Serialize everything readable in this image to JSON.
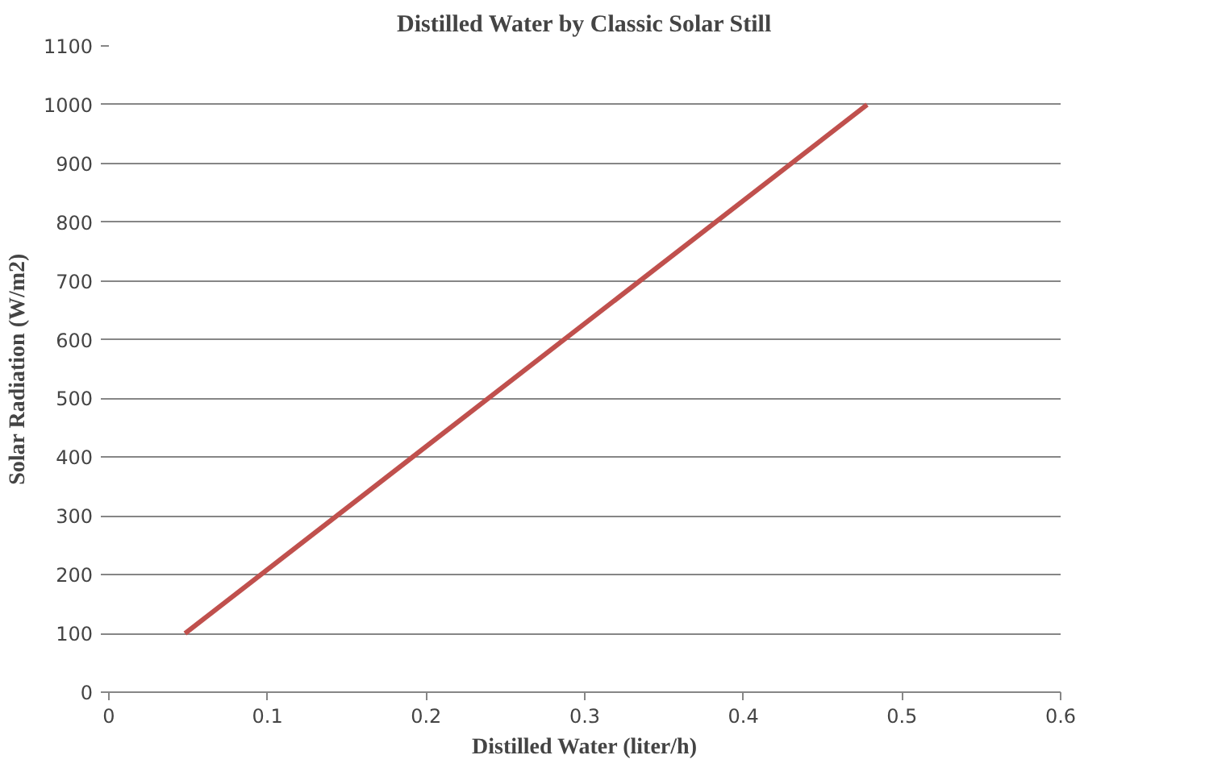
{
  "chart_data": {
    "type": "line",
    "title": "Distilled Water by Classic Solar Still",
    "xlabel": "Distilled Water (liter/h)",
    "ylabel": "Solar Radiation (W/m2)",
    "x": [
      0.048,
      0.478
    ],
    "series": [
      {
        "color": "#c0504d",
        "values": [
          100,
          1000
        ]
      }
    ],
    "xlim": [
      0,
      0.6
    ],
    "xticks": [
      0,
      0.1,
      0.2,
      0.3,
      0.4,
      0.5,
      0.6
    ],
    "ylim": [
      0,
      1100
    ],
    "yticks": [
      0,
      100,
      200,
      300,
      400,
      500,
      600,
      700,
      800,
      900,
      1000,
      1100
    ],
    "grid": "y",
    "marker": "none",
    "line_style": "solid"
  }
}
